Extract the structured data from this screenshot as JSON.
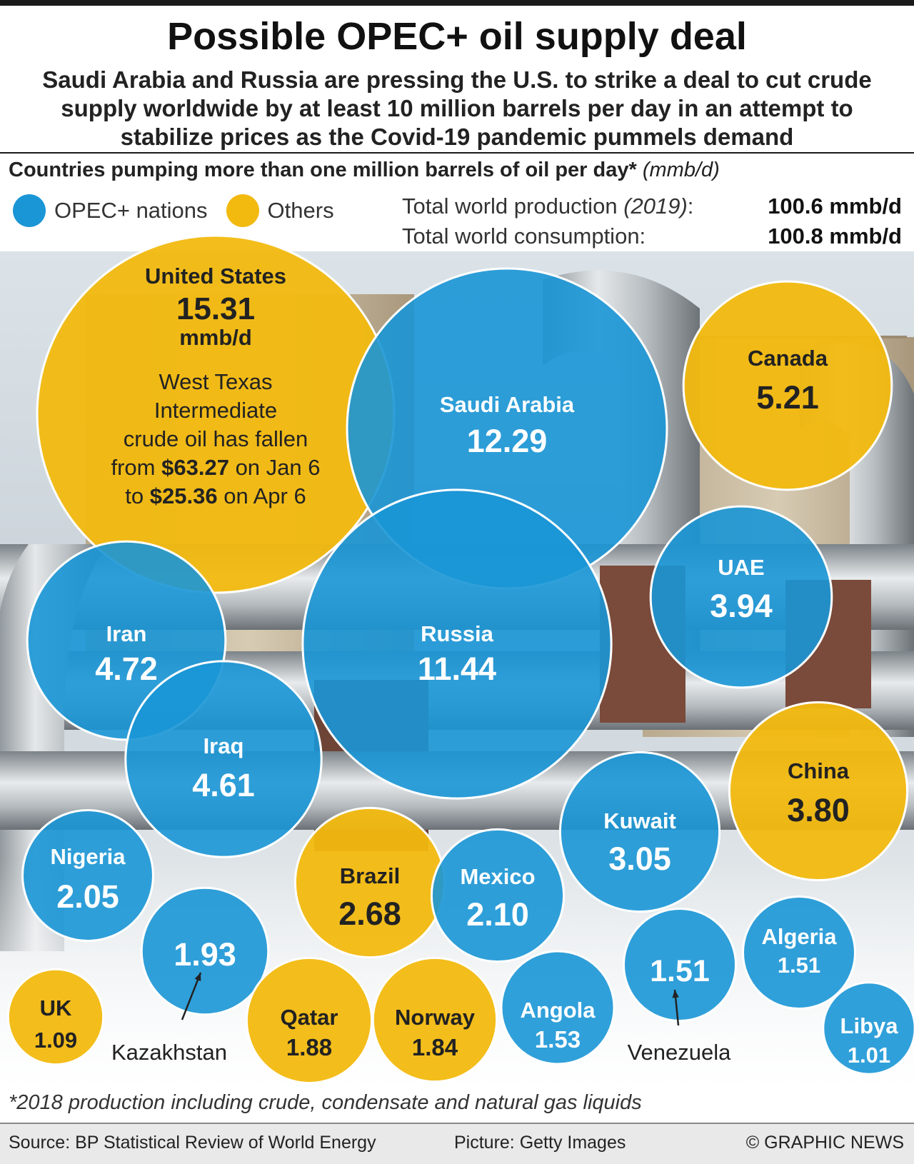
{
  "header": {
    "title": "Possible OPEC+ oil supply deal",
    "subtitle": "Saudi Arabia and Russia are pressing the U.S. to strike a deal to cut crude supply worldwide by at least 10 million barrels per day in an attempt to stabilize prices as the Covid-19 pandemic pummels demand"
  },
  "chart_heading": "Countries pumping more than one million barrels of oil per day*",
  "chart_unit": "(mmb/d)",
  "legend": [
    {
      "label": "OPEC+ nations",
      "color": "#1a96d6"
    },
    {
      "label": "Others",
      "color": "#f2b90f"
    }
  ],
  "stats": {
    "production_label": "Total world production",
    "production_year": "(2019)",
    "production_colon": ":",
    "production_value": "100.6 mmb/d",
    "consumption_label": "Total world consumption:",
    "consumption_value": "100.8 mmb/d"
  },
  "chart_data": {
    "type": "bubble",
    "unit": "mmb/d",
    "series": [
      {
        "name": "OPEC+ nations",
        "color": "#1a96d6"
      },
      {
        "name": "Others",
        "color": "#f2b90f"
      }
    ],
    "points": [
      {
        "country": "United States",
        "value": 15.31,
        "label": "15.31",
        "group": "Others"
      },
      {
        "country": "Saudi Arabia",
        "value": 12.29,
        "label": "12.29",
        "group": "OPEC+ nations"
      },
      {
        "country": "Russia",
        "value": 11.44,
        "label": "11.44",
        "group": "OPEC+ nations"
      },
      {
        "country": "Canada",
        "value": 5.21,
        "label": "5.21",
        "group": "Others"
      },
      {
        "country": "Iran",
        "value": 4.72,
        "label": "4.72",
        "group": "OPEC+ nations"
      },
      {
        "country": "Iraq",
        "value": 4.61,
        "label": "4.61",
        "group": "OPEC+ nations"
      },
      {
        "country": "UAE",
        "value": 3.94,
        "label": "3.94",
        "group": "OPEC+ nations"
      },
      {
        "country": "China",
        "value": 3.8,
        "label": "3.80",
        "group": "Others"
      },
      {
        "country": "Kuwait",
        "value": 3.05,
        "label": "3.05",
        "group": "OPEC+ nations"
      },
      {
        "country": "Brazil",
        "value": 2.68,
        "label": "2.68",
        "group": "Others"
      },
      {
        "country": "Mexico",
        "value": 2.1,
        "label": "2.10",
        "group": "OPEC+ nations"
      },
      {
        "country": "Nigeria",
        "value": 2.05,
        "label": "2.05",
        "group": "OPEC+ nations"
      },
      {
        "country": "Kazakhstan",
        "value": 1.93,
        "label": "1.93",
        "group": "OPEC+ nations"
      },
      {
        "country": "Qatar",
        "value": 1.88,
        "label": "1.88",
        "group": "Others"
      },
      {
        "country": "Norway",
        "value": 1.84,
        "label": "1.84",
        "group": "Others"
      },
      {
        "country": "Angola",
        "value": 1.53,
        "label": "1.53",
        "group": "OPEC+ nations"
      },
      {
        "country": "Venezuela",
        "value": 1.51,
        "label": "1.51",
        "group": "OPEC+ nations"
      },
      {
        "country": "Algeria",
        "value": 1.51,
        "label": "1.51",
        "group": "OPEC+ nations"
      },
      {
        "country": "UK",
        "value": 1.09,
        "label": "1.09",
        "group": "Others"
      },
      {
        "country": "Libya",
        "value": 1.01,
        "label": "1.01",
        "group": "OPEC+ nations"
      }
    ],
    "annotations": {
      "united_states_unit": "mmb/d",
      "wti_note": [
        "West Texas",
        "Intermediate",
        "crude oil has fallen"
      ],
      "wti_from_prefix": "from ",
      "wti_from_price": "$63.27",
      "wti_from_suffix": " on Jan 6",
      "wti_to_prefix": "to ",
      "wti_to_price": "$25.36",
      "wti_to_suffix": " on Apr 6"
    }
  },
  "footer": {
    "footnote": "*2018 production including crude, condensate and natural gas liquids",
    "source": "Source: BP Statistical Review of World Energy",
    "picture": "Picture: Getty Images",
    "credit": "© GRAPHIC NEWS"
  }
}
